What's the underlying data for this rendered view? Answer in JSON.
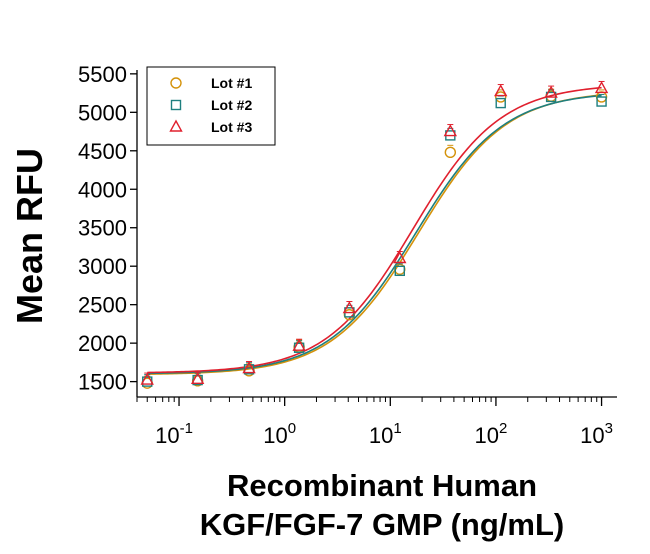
{
  "chart_data": {
    "type": "scatter",
    "title": "",
    "ylabel": "Mean RFU",
    "xlabel_lines": [
      "Recombinant Human",
      "KGF/FGF-7 GMP (ng/mL)"
    ],
    "x_scale": "log",
    "xlim": [
      0.04,
      1400
    ],
    "ylim": [
      1300,
      5550
    ],
    "y_ticks": [
      1500,
      2000,
      2500,
      3000,
      3500,
      4000,
      4500,
      5000,
      5500
    ],
    "x_ticks": [
      {
        "value": 0.1,
        "base": "10",
        "exp": "-1"
      },
      {
        "value": 1,
        "base": "10",
        "exp": "0"
      },
      {
        "value": 10,
        "base": "10",
        "exp": "1"
      },
      {
        "value": 100,
        "base": "10",
        "exp": "2"
      },
      {
        "value": 1000,
        "base": "10",
        "exp": "3"
      }
    ],
    "legend_position": "top-left",
    "x": [
      0.05,
      0.15,
      0.46,
      1.37,
      4.1,
      12.3,
      37,
      111,
      333,
      1000
    ],
    "series": [
      {
        "name": "Lot #1",
        "marker": "circle",
        "color": "#D4920A",
        "values": [
          1480,
          1510,
          1640,
          1950,
          2370,
          2960,
          4480,
          5200,
          5210,
          5200
        ],
        "fit": {
          "bottom": 1590,
          "top": 5280,
          "ec50": 18.5,
          "hill": 1.05
        }
      },
      {
        "name": "Lot #2",
        "marker": "square",
        "color": "#1E7F7F",
        "values": [
          1500,
          1520,
          1660,
          1940,
          2400,
          2940,
          4700,
          5120,
          5200,
          5140
        ],
        "fit": {
          "bottom": 1600,
          "top": 5270,
          "ec50": 17.5,
          "hill": 1.05
        }
      },
      {
        "name": "Lot #3",
        "marker": "triangle",
        "color": "#E0202E",
        "values": [
          1520,
          1530,
          1670,
          1960,
          2450,
          3100,
          4750,
          5270,
          5250,
          5310
        ],
        "fit": {
          "bottom": 1610,
          "top": 5370,
          "ec50": 16.5,
          "hill": 1.05
        }
      }
    ]
  }
}
